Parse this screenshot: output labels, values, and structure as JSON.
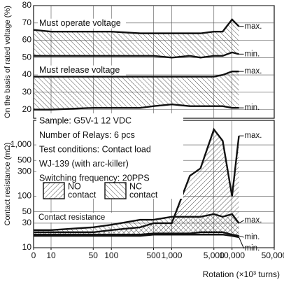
{
  "chart_data": [
    {
      "type": "line",
      "ylabel": "On the basis of rated voltage (%)",
      "ylim": [
        15,
        80
      ],
      "yticks": [
        20,
        30,
        40,
        50,
        60,
        70,
        80
      ],
      "x": [
        0,
        10,
        50,
        100,
        300,
        500,
        1000,
        2000,
        3000,
        5000,
        7000,
        10000,
        13000
      ],
      "bands": [
        {
          "label": "Must operate voltage",
          "hatch": "back",
          "max": {
            "label": "max.",
            "values": [
              66,
              65,
              65,
              65,
              64,
              64,
              64,
              64,
              64,
              65,
              65,
              72,
              68
            ]
          },
          "min": {
            "label": "min.",
            "values": [
              51,
              51,
              51,
              51,
              51,
              51,
              50,
              51,
              50,
              51,
              51,
              53,
              52
            ]
          }
        },
        {
          "label": "Must release voltage",
          "hatch": "back",
          "max": {
            "label": "max.",
            "values": [
              39,
              39,
              39,
              39,
              39,
              39,
              39,
              39,
              39,
              39,
              40,
              42,
              42
            ]
          },
          "min": {
            "label": "min.",
            "values": [
              20,
              20,
              21,
              21,
              21,
              22,
              23,
              22,
              22,
              22,
              22,
              21,
              21
            ]
          }
        }
      ]
    },
    {
      "type": "line",
      "yscale": "log",
      "ylabel": "Contact resistance (mΩ)",
      "xlabel": "Rotation (×10³ turns)",
      "ylim": [
        10,
        3000
      ],
      "yticks": [
        10,
        30,
        50,
        100,
        300,
        500,
        {
          "value": 1000,
          "label": "1,000"
        }
      ],
      "xscale": "log",
      "xlim": [
        0,
        50000
      ],
      "xticks": [
        {
          "value": 0,
          "label": "0"
        },
        10,
        50,
        100,
        500,
        {
          "value": 1000,
          "label": "1,000"
        },
        {
          "value": 5000,
          "label": "5,000"
        },
        {
          "value": 10000,
          "label": "10,000"
        },
        {
          "value": 50000,
          "label": "50,000"
        }
      ],
      "x": [
        0,
        10,
        50,
        100,
        300,
        500,
        1000,
        2000,
        3000,
        5000,
        7000,
        10000,
        13000
      ],
      "annotation": "Contact resistance",
      "conditions": [
        "Sample: G5V-1 12 VDC",
        "Number of Relays: 6 pcs",
        "Test conditions: Contact load",
        "WJ-139 (with arc-killer)",
        "Switching frequency: 20PPS"
      ],
      "bands": [
        {
          "legend": [
            "NO",
            "contact"
          ],
          "hatch": "forward",
          "max": {
            "label": "max.",
            "values": [
              20,
              20,
              20,
              22,
              25,
              30,
              30,
              250,
              350,
              2000,
              1200,
              100,
              1500
            ]
          },
          "min": {
            "label": "min.",
            "values": [
              18,
              18,
              18,
              18,
              18,
              19,
              19,
              19,
              20,
              20,
              20,
              18,
              17
            ]
          }
        },
        {
          "legend": [
            "NC",
            "contact"
          ],
          "hatch": "back",
          "max": {
            "label": "max.",
            "values": [
              22,
              22,
              25,
              28,
              35,
              35,
              40,
              40,
              40,
              45,
              40,
              45,
              30
            ]
          },
          "min": {
            "label": "min.",
            "values": [
              17,
              17,
              17,
              17,
              17,
              18,
              18,
              18,
              18,
              18,
              18,
              17,
              16
            ]
          }
        }
      ]
    }
  ]
}
